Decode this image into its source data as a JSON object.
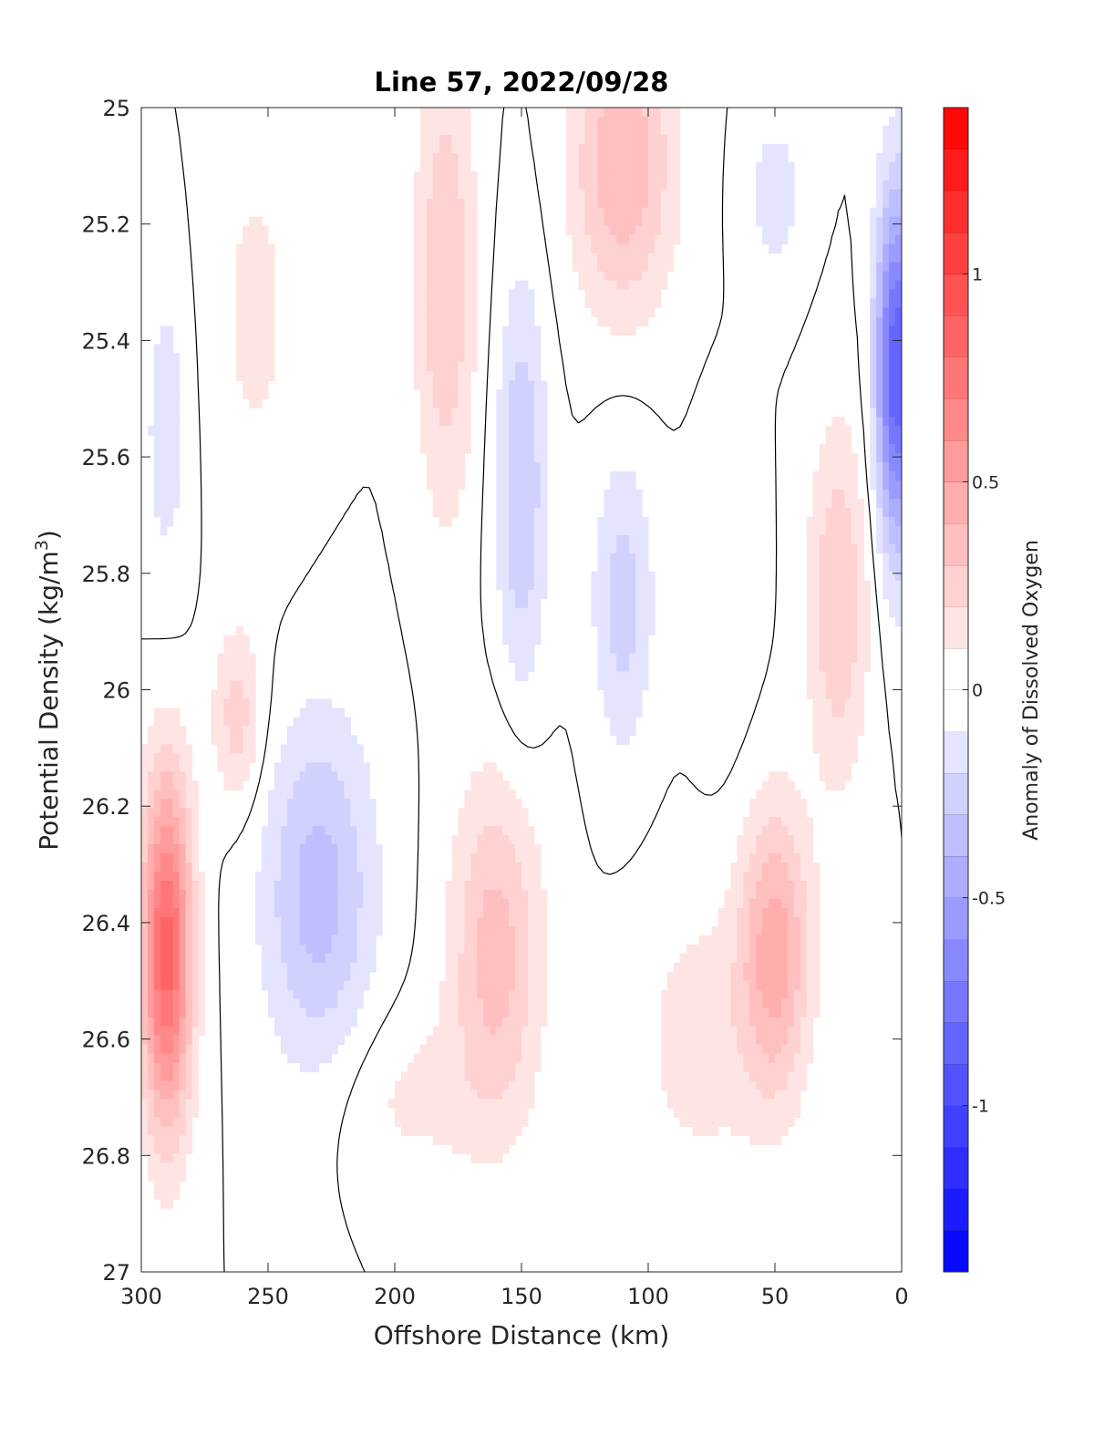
{
  "chart_data": {
    "type": "heatmap",
    "title": "Line 57, 2022/09/28",
    "xlabel": "Offshore Distance (km)",
    "ylabel_main": "Potential Density (kg/m",
    "ylabel_sup": "3",
    "ylabel_close": ")",
    "xlim": [
      300,
      0
    ],
    "ylim": [
      25,
      27
    ],
    "y_reversed": true,
    "xticks": [
      300,
      250,
      200,
      150,
      100,
      50,
      0
    ],
    "xtick_labels": [
      "300",
      "250",
      "200",
      "150",
      "100",
      "50",
      "0"
    ],
    "yticks": [
      25,
      25.2,
      25.4,
      25.6,
      25.8,
      26,
      26.2,
      26.4,
      26.6,
      26.8,
      27
    ],
    "ytick_labels": [
      "25",
      "25.2",
      "25.4",
      "25.6",
      "25.8",
      "26",
      "26.2",
      "26.4",
      "26.6",
      "26.8",
      "27"
    ],
    "colorbar": {
      "label": "Anomaly of Dissolved Oxygen",
      "min": -1.4,
      "max": 1.4,
      "step": 0.1,
      "ticks": [
        1,
        0.5,
        0,
        -0.5,
        -1
      ],
      "tick_labels": [
        "1",
        "0.5",
        "0",
        "-0.5",
        "-1"
      ],
      "colormap": "blue-white-red",
      "low_color": "#0000ff",
      "mid_color": "#ffffff",
      "high_color": "#ff0000"
    },
    "zero_contour_color": "#000000",
    "features": [
      {
        "x": 290,
        "y": 26.45,
        "value": 0.85,
        "sx": 10,
        "sy": 0.3
      },
      {
        "x": 262,
        "y": 26.05,
        "value": 0.25,
        "sx": 10,
        "sy": 0.15
      },
      {
        "x": 230,
        "y": 26.35,
        "value": -0.35,
        "sx": 22,
        "sy": 0.3
      },
      {
        "x": 290,
        "y": 25.55,
        "value": -0.15,
        "sx": 10,
        "sy": 0.3
      },
      {
        "x": 255,
        "y": 25.35,
        "value": 0.12,
        "sx": 20,
        "sy": 0.4
      },
      {
        "x": 180,
        "y": 25.3,
        "value": 0.3,
        "sx": 12,
        "sy": 0.4
      },
      {
        "x": 160,
        "y": 26.45,
        "value": 0.35,
        "sx": 18,
        "sy": 0.3
      },
      {
        "x": 150,
        "y": 25.65,
        "value": -0.3,
        "sx": 10,
        "sy": 0.35
      },
      {
        "x": 110,
        "y": 25.1,
        "value": 0.4,
        "sx": 20,
        "sy": 0.25
      },
      {
        "x": 110,
        "y": 25.85,
        "value": -0.25,
        "sx": 12,
        "sy": 0.25
      },
      {
        "x": 80,
        "y": 26.6,
        "value": 0.15,
        "sx": 25,
        "sy": 0.25
      },
      {
        "x": 50,
        "y": 26.45,
        "value": 0.45,
        "sx": 14,
        "sy": 0.25
      },
      {
        "x": 50,
        "y": 25.15,
        "value": -0.15,
        "sx": 12,
        "sy": 0.15
      },
      {
        "x": 25,
        "y": 25.85,
        "value": 0.3,
        "sx": 12,
        "sy": 0.3
      },
      {
        "x": 2,
        "y": 25.45,
        "value": -0.9,
        "sx": 8,
        "sy": 0.3
      },
      {
        "x": 70,
        "y": 25.85,
        "value": -0.1,
        "sx": 12,
        "sy": 0.25
      },
      {
        "x": 195,
        "y": 26.7,
        "value": 0.12,
        "sx": 30,
        "sy": 0.15
      }
    ]
  }
}
